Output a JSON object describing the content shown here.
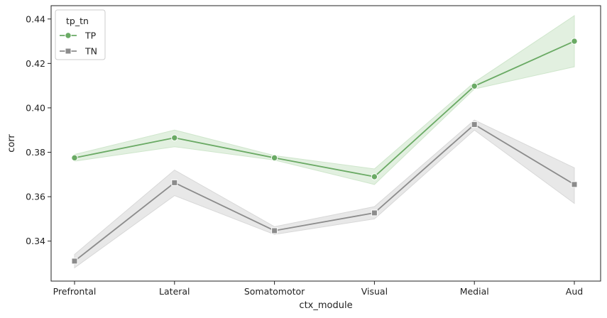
{
  "chart_data": {
    "type": "line",
    "xlabel": "ctx_module",
    "ylabel": "corr",
    "categories": [
      "Prefrontal",
      "Lateral",
      "Somatomotor",
      "Visual",
      "Medial",
      "Aud"
    ],
    "ylim": [
      0.322,
      0.446
    ],
    "yticks": [
      "0.34",
      "0.36",
      "0.38",
      "0.40",
      "0.42",
      "0.44"
    ],
    "grid": false,
    "legend": {
      "title": "tp_tn",
      "placement": "top-left"
    },
    "series": [
      {
        "name": "TP",
        "color": "#6aaa64",
        "band_color": "#cfe6cc",
        "marker": "circle",
        "values": [
          0.3775,
          0.3865,
          0.3775,
          0.369,
          0.4098,
          0.43
        ],
        "ci_low": [
          0.376,
          0.3825,
          0.3765,
          0.3655,
          0.4085,
          0.4185
        ],
        "ci_high": [
          0.379,
          0.39,
          0.3785,
          0.3725,
          0.4115,
          0.4415
        ]
      },
      {
        "name": "TN",
        "color": "#8c8c8c",
        "band_color": "#d8d8d8",
        "marker": "square",
        "values": [
          0.331,
          0.3663,
          0.3447,
          0.3527,
          0.3925,
          0.3655
        ],
        "ci_low": [
          0.328,
          0.3605,
          0.343,
          0.35,
          0.39,
          0.357
        ],
        "ci_high": [
          0.334,
          0.372,
          0.3465,
          0.3555,
          0.3945,
          0.373
        ]
      }
    ]
  }
}
